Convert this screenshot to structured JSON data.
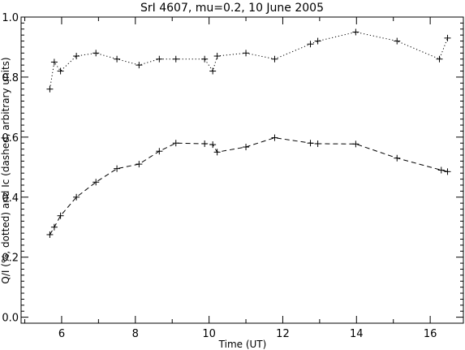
{
  "chart_data": {
    "type": "line",
    "title": "SrI 4607, mu=0.2, 10 June 2005",
    "xlabel": "Time (UT)",
    "ylabel": "Q/I (%, dotted) and Ic (dashed, arbitrary units)",
    "xlim": [
      4.9,
      16.9
    ],
    "ylim": [
      -0.02,
      1.0
    ],
    "xticks": [
      6,
      8,
      10,
      12,
      14,
      16
    ],
    "yticks": [
      0.0,
      0.2,
      0.4,
      0.6,
      0.8,
      1.0
    ],
    "xtick_labels": [
      "6",
      "8",
      "10",
      "12",
      "14",
      "16"
    ],
    "ytick_labels": [
      "0.0",
      "0.2",
      "0.4",
      "0.6",
      "0.8",
      "1.0"
    ],
    "grid": false,
    "series": [
      {
        "line_style": "dotted",
        "marker": "plus",
        "x": [
          5.68,
          5.8,
          5.97,
          6.4,
          6.93,
          7.5,
          8.1,
          8.65,
          9.1,
          9.88,
          10.1,
          10.22,
          11.0,
          11.78,
          12.75,
          12.95,
          13.98,
          15.1,
          16.25,
          16.47
        ],
        "y": [
          0.76,
          0.85,
          0.82,
          0.87,
          0.88,
          0.86,
          0.84,
          0.86,
          0.86,
          0.86,
          0.82,
          0.87,
          0.88,
          0.86,
          0.91,
          0.92,
          0.95,
          0.92,
          0.86,
          0.93
        ]
      },
      {
        "line_style": "dashed",
        "marker": "plus",
        "x": [
          5.68,
          5.8,
          5.97,
          6.4,
          6.93,
          7.5,
          8.1,
          8.65,
          9.1,
          9.88,
          10.1,
          10.22,
          11.0,
          11.78,
          12.75,
          12.95,
          13.98,
          15.1,
          16.3,
          16.47
        ],
        "y": [
          0.275,
          0.3,
          0.338,
          0.4,
          0.45,
          0.495,
          0.51,
          0.553,
          0.58,
          0.578,
          0.575,
          0.55,
          0.567,
          0.598,
          0.58,
          0.578,
          0.577,
          0.53,
          0.49,
          0.485
        ]
      }
    ]
  }
}
